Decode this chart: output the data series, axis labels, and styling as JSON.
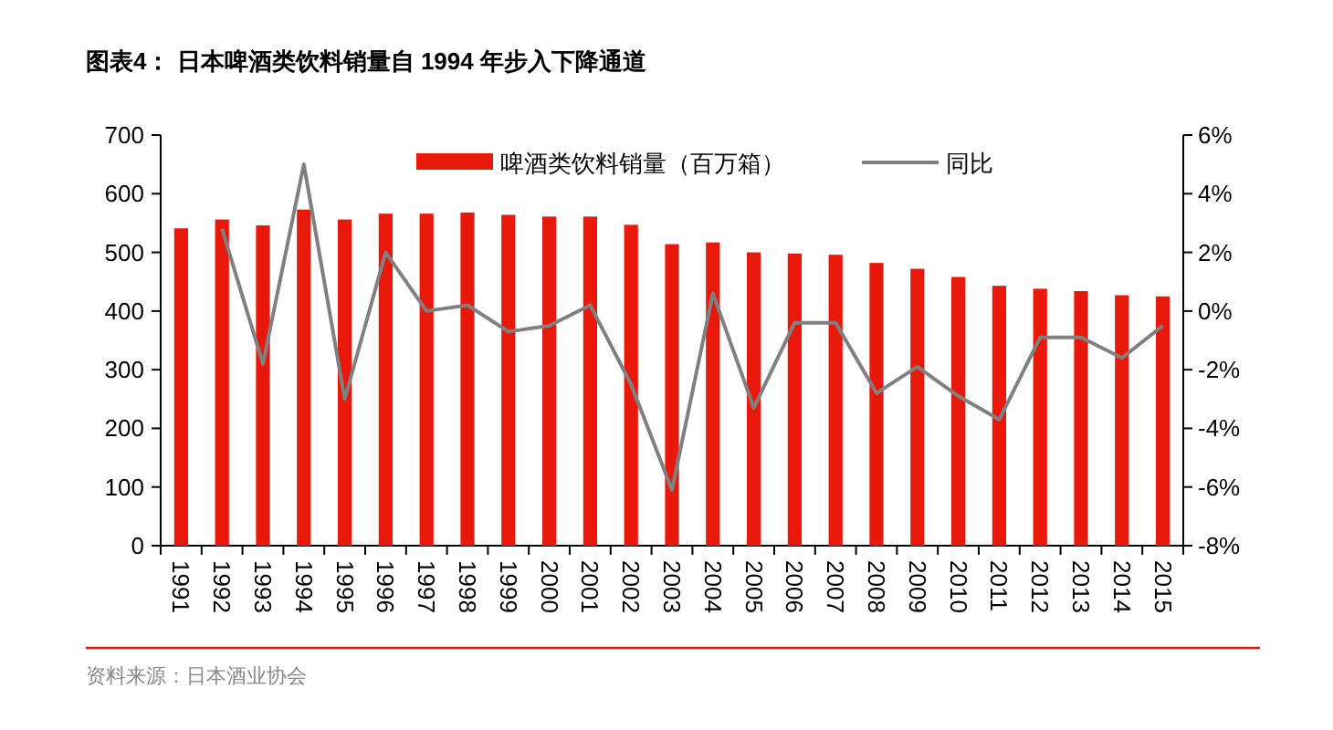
{
  "chart_data": {
    "type": "bar",
    "title": "图表4：  日本啤酒类饮料销量自 1994 年步入下降通道",
    "categories": [
      "1991",
      "1992",
      "1993",
      "1994",
      "1995",
      "1996",
      "1997",
      "1998",
      "1999",
      "2000",
      "2001",
      "2002",
      "2003",
      "2004",
      "2005",
      "2006",
      "2007",
      "2008",
      "2009",
      "2010",
      "2011",
      "2012",
      "2013",
      "2014",
      "2015"
    ],
    "series": [
      {
        "name": "啤酒类饮料销量（百万箱）",
        "color": "#e8190a",
        "values": [
          541,
          556,
          546,
          573,
          556,
          566,
          566,
          568,
          564,
          561,
          561,
          547,
          514,
          517,
          500,
          498,
          496,
          482,
          472,
          458,
          443,
          438,
          434,
          427,
          425
        ]
      },
      {
        "name": "同比",
        "type": "line",
        "axis": "y2",
        "color": "#808080",
        "values": [
          null,
          2.8,
          -1.8,
          5.0,
          -3.0,
          2.0,
          0.0,
          0.2,
          -0.7,
          -0.5,
          0.2,
          -2.5,
          -6.1,
          0.6,
          -3.3,
          -0.4,
          -0.4,
          -2.8,
          -1.9,
          -2.9,
          -3.7,
          -0.9,
          -0.9,
          -1.6,
          -0.5
        ]
      }
    ],
    "ylim": [
      0,
      700
    ],
    "yticks": [
      0,
      100,
      200,
      300,
      400,
      500,
      600,
      700
    ],
    "y2lim": [
      -8,
      6
    ],
    "y2ticks": [
      {
        "value": -8,
        "label": "-8%"
      },
      {
        "value": -6,
        "label": "-6%"
      },
      {
        "value": -4,
        "label": "-4%"
      },
      {
        "value": -2,
        "label": "-2%"
      },
      {
        "value": 0,
        "label": "0%"
      },
      {
        "value": 2,
        "label": "2%"
      },
      {
        "value": 4,
        "label": "4%"
      },
      {
        "value": 6,
        "label": "6%"
      }
    ],
    "legend": "top",
    "grid": false,
    "annotations": [
      "资料来源：日本酒业协会"
    ]
  }
}
